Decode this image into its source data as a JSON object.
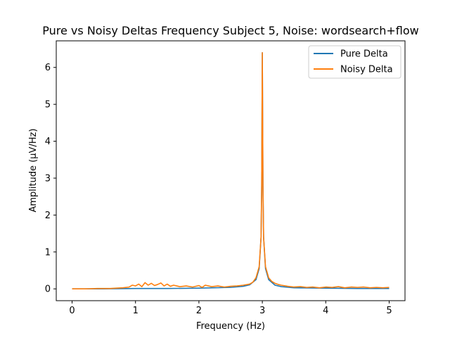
{
  "chart_data": {
    "type": "line",
    "title": "Pure vs Noisy Deltas Frequency Subject 5, Noise: wordsearch+flow",
    "xlabel": "Frequency (Hz)",
    "ylabel": "Amplitude (μV/Hz)",
    "xlim": [
      -0.25,
      5.25
    ],
    "ylim": [
      -0.32,
      6.72
    ],
    "xticks": [
      0,
      1,
      2,
      3,
      4,
      5
    ],
    "xtick_labels": [
      "0",
      "1",
      "2",
      "3",
      "4",
      "5"
    ],
    "yticks": [
      0,
      1,
      2,
      3,
      4,
      5,
      6
    ],
    "ytick_labels": [
      "0",
      "1",
      "2",
      "3",
      "4",
      "5",
      "6"
    ],
    "grid": false,
    "legend_position": "top-right",
    "peak_frequency": 3.0,
    "peak_amplitude": 6.4,
    "series": [
      {
        "name": "Pure Delta",
        "color": "#1f77b4",
        "x": [
          0,
          0.5,
          1.0,
          1.5,
          2.0,
          2.5,
          2.7,
          2.8,
          2.9,
          2.95,
          2.98,
          2.99,
          3.0,
          3.01,
          3.02,
          3.05,
          3.1,
          3.2,
          3.3,
          3.5,
          4.0,
          4.5,
          5.0
        ],
        "y": [
          0.0,
          0.0,
          0.01,
          0.01,
          0.02,
          0.04,
          0.07,
          0.11,
          0.25,
          0.55,
          1.4,
          2.8,
          6.4,
          2.8,
          1.4,
          0.55,
          0.25,
          0.1,
          0.06,
          0.03,
          0.02,
          0.01,
          0.01
        ]
      },
      {
        "name": "Noisy Delta",
        "color": "#ff7f0e",
        "x": [
          0,
          0.2,
          0.4,
          0.6,
          0.8,
          0.9,
          0.95,
          1.0,
          1.05,
          1.1,
          1.15,
          1.2,
          1.25,
          1.3,
          1.35,
          1.4,
          1.45,
          1.5,
          1.55,
          1.6,
          1.7,
          1.8,
          1.9,
          2.0,
          2.05,
          2.1,
          2.2,
          2.3,
          2.4,
          2.5,
          2.6,
          2.7,
          2.8,
          2.85,
          2.9,
          2.95,
          2.98,
          2.99,
          3.0,
          3.01,
          3.02,
          3.05,
          3.1,
          3.15,
          3.2,
          3.25,
          3.3,
          3.4,
          3.5,
          3.6,
          3.7,
          3.8,
          3.9,
          4.0,
          4.1,
          4.2,
          4.3,
          4.4,
          4.5,
          4.6,
          4.7,
          4.8,
          4.9,
          5.0
        ],
        "y": [
          0.0,
          0.0,
          0.01,
          0.01,
          0.03,
          0.05,
          0.1,
          0.08,
          0.13,
          0.06,
          0.17,
          0.1,
          0.15,
          0.09,
          0.12,
          0.16,
          0.08,
          0.13,
          0.07,
          0.1,
          0.06,
          0.08,
          0.05,
          0.09,
          0.04,
          0.1,
          0.06,
          0.08,
          0.05,
          0.07,
          0.08,
          0.1,
          0.13,
          0.18,
          0.3,
          0.6,
          1.4,
          2.8,
          6.4,
          2.8,
          1.4,
          0.6,
          0.3,
          0.2,
          0.15,
          0.12,
          0.1,
          0.07,
          0.05,
          0.06,
          0.04,
          0.05,
          0.03,
          0.05,
          0.04,
          0.06,
          0.03,
          0.05,
          0.04,
          0.05,
          0.03,
          0.04,
          0.03,
          0.04
        ]
      }
    ]
  }
}
